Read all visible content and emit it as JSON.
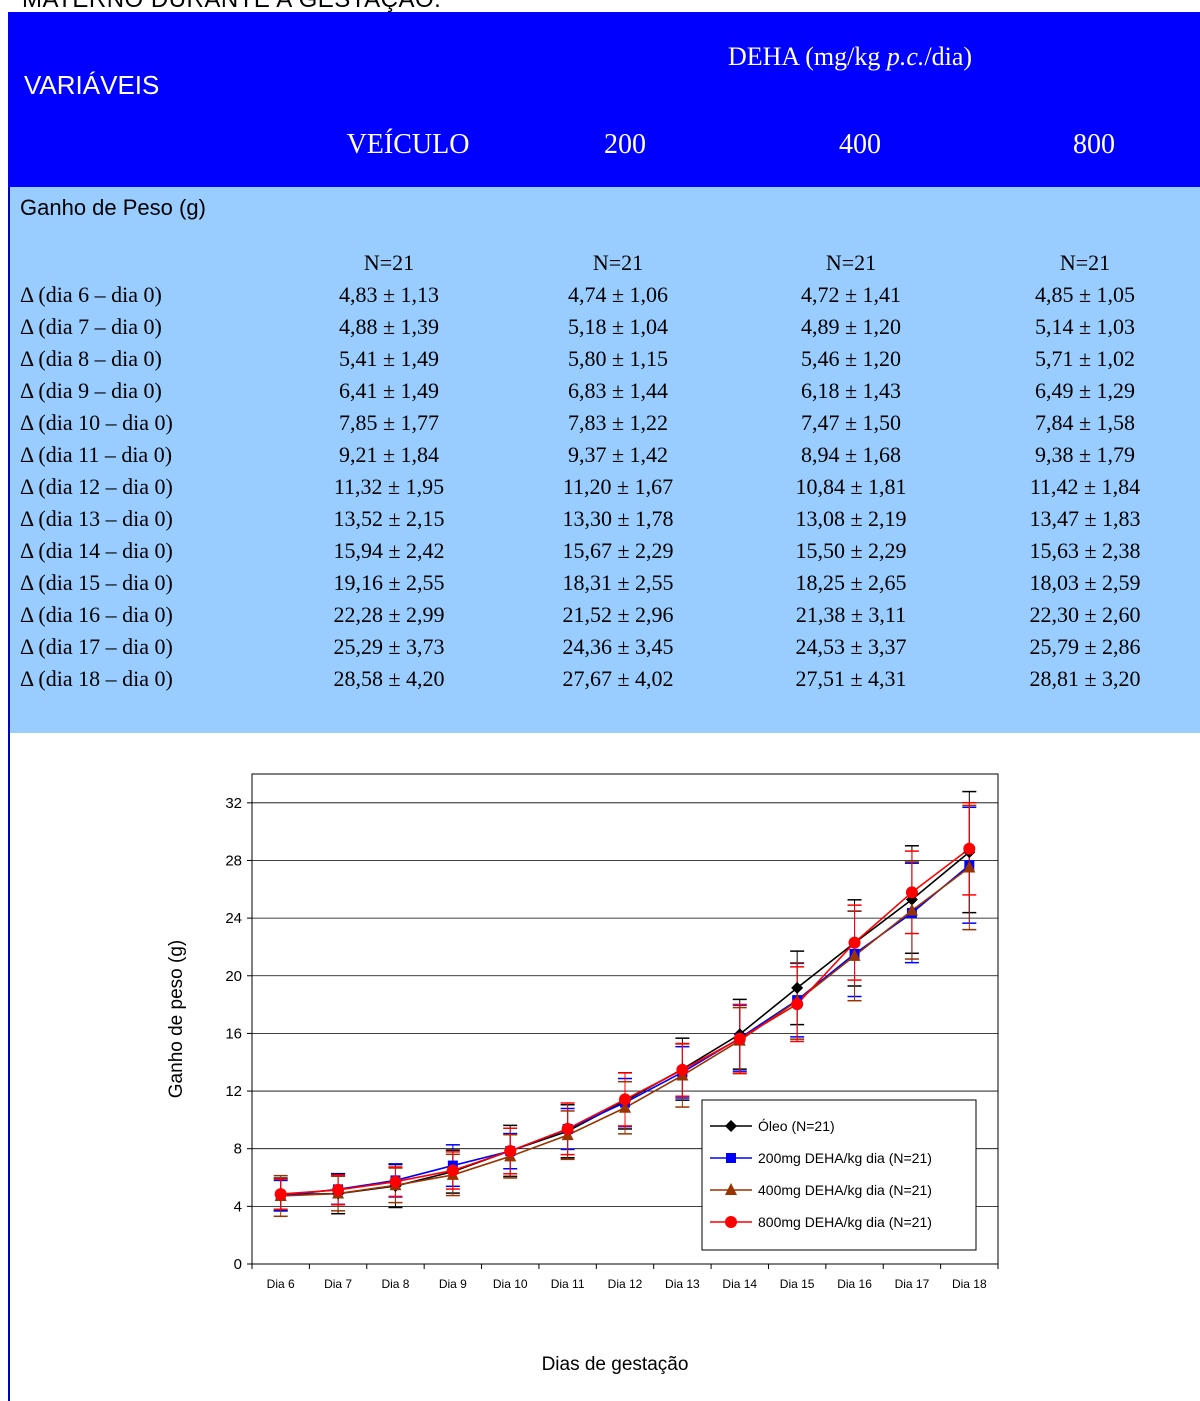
{
  "page": {
    "cut_title": "MATERNO DURANTE A GESTAÇÃO."
  },
  "table": {
    "header": {
      "variaveis": "VARIÁVEIS",
      "dose_group_prefix": "DEHA (mg/kg ",
      "dose_group_italic": "p.c.",
      "dose_group_suffix": "/dia)",
      "columns": [
        "VEÍCULO",
        "200",
        "400",
        "800"
      ]
    },
    "section_label": "Ganho de Peso (g)",
    "n_row": [
      "N=21",
      "N=21",
      "N=21",
      "N=21"
    ],
    "rows": [
      {
        "label": "Δ (dia 6 – dia 0)",
        "values": [
          "4,83 ± 1,13",
          "4,74 ± 1,06",
          "4,72 ± 1,41",
          "4,85 ± 1,05"
        ]
      },
      {
        "label": "Δ (dia 7 – dia 0)",
        "values": [
          "4,88 ± 1,39",
          "5,18 ± 1,04",
          "4,89 ± 1,20",
          "5,14 ± 1,03"
        ]
      },
      {
        "label": "Δ (dia 8 – dia 0)",
        "values": [
          "5,41 ± 1,49",
          "5,80 ± 1,15",
          "5,46 ± 1,20",
          "5,71 ± 1,02"
        ]
      },
      {
        "label": "Δ (dia 9 – dia 0)",
        "values": [
          "6,41 ± 1,49",
          "6,83 ± 1,44",
          "6,18 ± 1,43",
          "6,49 ± 1,29"
        ]
      },
      {
        "label": "Δ (dia 10 – dia 0)",
        "values": [
          "7,85 ± 1,77",
          "7,83 ± 1,22",
          "7,47 ± 1,50",
          "7,84 ± 1,58"
        ]
      },
      {
        "label": "Δ (dia 11 – dia 0)",
        "values": [
          "9,21 ± 1,84",
          "9,37 ± 1,42",
          "8,94 ± 1,68",
          "9,38 ± 1,79"
        ]
      },
      {
        "label": "Δ (dia 12 – dia 0)",
        "values": [
          "11,32 ± 1,95",
          "11,20 ± 1,67",
          "10,84 ± 1,81",
          "11,42 ± 1,84"
        ]
      },
      {
        "label": "Δ (dia 13 – dia 0)",
        "values": [
          "13,52 ± 2,15",
          "13,30 ± 1,78",
          "13,08 ± 2,19",
          "13,47 ± 1,83"
        ]
      },
      {
        "label": "Δ (dia 14 – dia 0)",
        "values": [
          "15,94 ± 2,42",
          "15,67 ± 2,29",
          "15,50 ± 2,29",
          "15,63 ± 2,38"
        ]
      },
      {
        "label": "Δ (dia 15 – dia 0)",
        "values": [
          "19,16 ± 2,55",
          "18,31 ± 2,55",
          "18,25 ± 2,65",
          "18,03 ± 2,59"
        ]
      },
      {
        "label": "Δ (dia 16 – dia 0)",
        "values": [
          "22,28 ± 2,99",
          "21,52 ± 2,96",
          "21,38 ± 3,11",
          "22,30 ± 2,60"
        ]
      },
      {
        "label": "Δ (dia 17 – dia 0)",
        "values": [
          "25,29 ± 3,73",
          "24,36 ± 3,45",
          "24,53 ± 3,37",
          "25,79 ± 2,86"
        ]
      },
      {
        "label": "Δ (dia 18 – dia 0)",
        "values": [
          "28,58 ± 4,20",
          "27,67 ± 4,02",
          "27,51 ± 4,31",
          "28,81 ± 3,20"
        ]
      }
    ]
  },
  "chart_data": {
    "type": "line",
    "title": "",
    "xlabel": "Dias de gestação",
    "ylabel": "Ganho de peso (g)",
    "ylim": [
      0,
      34
    ],
    "yticks": [
      0,
      4,
      8,
      12,
      16,
      20,
      24,
      28,
      32
    ],
    "grid": true,
    "legend_position": "bottom-right",
    "categories": [
      "Dia 6",
      "Dia 7",
      "Dia 8",
      "Dia 9",
      "Dia 10",
      "Dia 11",
      "Dia 12",
      "Dia 13",
      "Dia 14",
      "Dia 15",
      "Dia 16",
      "Dia 17",
      "Dia 18"
    ],
    "series": [
      {
        "name": "Óleo (N=21)",
        "color": "#000000",
        "marker": "diamond",
        "values": [
          4.83,
          4.88,
          5.41,
          6.41,
          7.85,
          9.21,
          11.32,
          13.52,
          15.94,
          19.16,
          22.28,
          25.29,
          28.58
        ],
        "errors": [
          1.13,
          1.39,
          1.49,
          1.49,
          1.77,
          1.84,
          1.95,
          2.15,
          2.42,
          2.55,
          2.99,
          3.73,
          4.2
        ]
      },
      {
        "name": "200mg DEHA/kg dia (N=21)",
        "color": "#0000ff",
        "marker": "square",
        "values": [
          4.74,
          5.18,
          5.8,
          6.83,
          7.83,
          9.37,
          11.2,
          13.3,
          15.67,
          18.31,
          21.52,
          24.36,
          27.67
        ],
        "errors": [
          1.06,
          1.04,
          1.15,
          1.44,
          1.22,
          1.42,
          1.67,
          1.78,
          2.29,
          2.55,
          2.96,
          3.45,
          4.02
        ]
      },
      {
        "name": "400mg DEHA/kg dia (N=21)",
        "color": "#993300",
        "marker": "triangle",
        "values": [
          4.72,
          4.89,
          5.46,
          6.18,
          7.47,
          8.94,
          10.84,
          13.08,
          15.5,
          18.25,
          21.38,
          24.53,
          27.51
        ],
        "errors": [
          1.41,
          1.2,
          1.2,
          1.43,
          1.5,
          1.68,
          1.81,
          2.19,
          2.29,
          2.65,
          3.11,
          3.37,
          4.31
        ]
      },
      {
        "name": "800mg DEHA/kg dia (N=21)",
        "color": "#ff0000",
        "marker": "circle",
        "values": [
          4.85,
          5.14,
          5.71,
          6.49,
          7.84,
          9.38,
          11.42,
          13.47,
          15.63,
          18.03,
          22.3,
          25.79,
          28.81
        ],
        "errors": [
          1.05,
          1.03,
          1.02,
          1.29,
          1.58,
          1.79,
          1.84,
          1.83,
          2.38,
          2.59,
          2.6,
          2.86,
          3.2
        ]
      }
    ]
  }
}
